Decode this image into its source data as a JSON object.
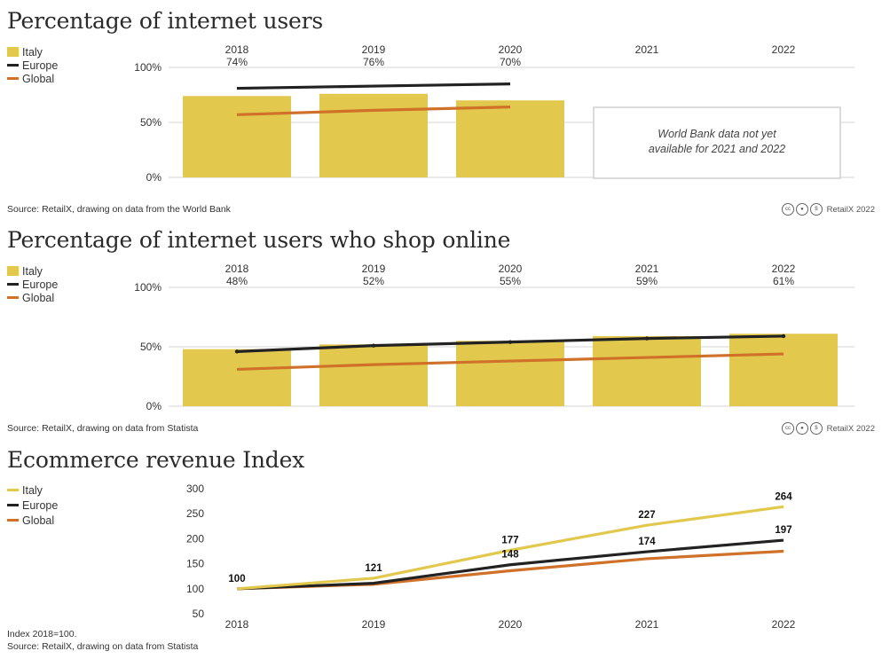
{
  "colors": {
    "italy": "#e2c84d",
    "europe": "#222222",
    "global": "#d0712a",
    "grid": "#d6d6d6",
    "italy_line": "#e2c84d"
  },
  "legend": {
    "italy": "Italy",
    "europe": "Europe",
    "global": "Global"
  },
  "credit": {
    "text": "RetailX 2022",
    "icons": [
      "cc-icon",
      "by-icon",
      "nc-icon"
    ]
  },
  "chart_data": [
    {
      "type": "bar",
      "title": "Percentage of internet users",
      "categories": [
        "2018",
        "2019",
        "2020",
        "2021",
        "2022"
      ],
      "value_labels": [
        "74%",
        "76%",
        "70%",
        "",
        ""
      ],
      "series": [
        {
          "name": "Italy",
          "type": "bar",
          "values": [
            74,
            76,
            70,
            null,
            null
          ]
        },
        {
          "name": "Europe",
          "type": "line",
          "values": [
            81,
            83,
            85,
            null,
            null
          ]
        },
        {
          "name": "Global",
          "type": "line",
          "values": [
            57,
            61,
            64,
            null,
            null
          ]
        }
      ],
      "yticks": [
        "100%",
        "50%",
        "0%"
      ],
      "ylim": [
        0,
        100
      ],
      "note": "World Bank data not yet available for 2021 and 2022",
      "source": "Source: RetailX, drawing on data from the World Bank"
    },
    {
      "type": "bar",
      "title": "Percentage of internet users who shop online",
      "categories": [
        "2018",
        "2019",
        "2020",
        "2021",
        "2022"
      ],
      "value_labels": [
        "48%",
        "52%",
        "55%",
        "59%",
        "61%"
      ],
      "series": [
        {
          "name": "Italy",
          "type": "bar",
          "values": [
            48,
            52,
            55,
            59,
            61
          ]
        },
        {
          "name": "Europe",
          "type": "line",
          "values": [
            46,
            51,
            54,
            57,
            59
          ]
        },
        {
          "name": "Global",
          "type": "line",
          "values": [
            31,
            35,
            38,
            41,
            44
          ]
        }
      ],
      "yticks": [
        "100%",
        "50%",
        "0%"
      ],
      "ylim": [
        0,
        100
      ],
      "source": "Source: RetailX, drawing on data from Statista"
    },
    {
      "type": "line",
      "title": "Ecommerce revenue Index",
      "categories": [
        "2018",
        "2019",
        "2020",
        "2021",
        "2022"
      ],
      "series": [
        {
          "name": "Italy",
          "values": [
            100,
            121,
            177,
            227,
            264
          ]
        },
        {
          "name": "Europe",
          "values": [
            100,
            111,
            148,
            174,
            197
          ]
        },
        {
          "name": "Global",
          "values": [
            100,
            109,
            136,
            160,
            175
          ]
        }
      ],
      "labels": [
        {
          "text": "100",
          "series": "Italy",
          "index": 0
        },
        {
          "text": "121",
          "series": "Italy",
          "index": 1
        },
        {
          "text": "177",
          "series": "Italy",
          "index": 2
        },
        {
          "text": "148",
          "series": "Europe",
          "index": 2
        },
        {
          "text": "227",
          "series": "Italy",
          "index": 3
        },
        {
          "text": "174",
          "series": "Europe",
          "index": 3
        },
        {
          "text": "264",
          "series": "Italy",
          "index": 4
        },
        {
          "text": "197",
          "series": "Europe",
          "index": 4
        }
      ],
      "yticks": [
        "300",
        "250",
        "200",
        "150",
        "100",
        "50"
      ],
      "ylim": [
        50,
        300
      ],
      "note": "Index 2018=100.",
      "source": "Source: RetailX, drawing on data from Statista"
    }
  ]
}
